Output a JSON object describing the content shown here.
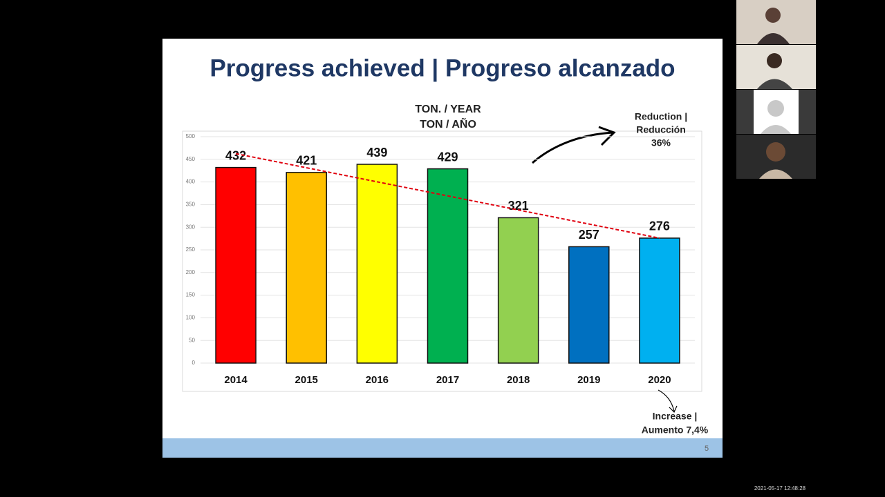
{
  "chart_data": {
    "type": "bar",
    "title": "Progress achieved | Progreso alcanzado",
    "subtitle": [
      "TON. / YEAR",
      "TON / AÑO"
    ],
    "categories": [
      "2014",
      "2015",
      "2016",
      "2017",
      "2018",
      "2019",
      "2020"
    ],
    "values": [
      432,
      421,
      439,
      429,
      321,
      257,
      276
    ],
    "colors": [
      "#ff0000",
      "#ffc000",
      "#ffff00",
      "#00b050",
      "#92d050",
      "#0070c0",
      "#00b0f0"
    ],
    "ylim": [
      0,
      500
    ],
    "yticks": [
      0,
      50,
      100,
      150,
      200,
      250,
      300,
      350,
      400,
      450,
      500
    ],
    "grid": true,
    "annotations": [
      [
        "Reduction |",
        "Reducción",
        "36%"
      ],
      [
        "Increase |",
        "Aumento 7,4%"
      ]
    ]
  },
  "slide": {
    "number": "5"
  },
  "timestamp": "2021-05-17 12:48:28"
}
